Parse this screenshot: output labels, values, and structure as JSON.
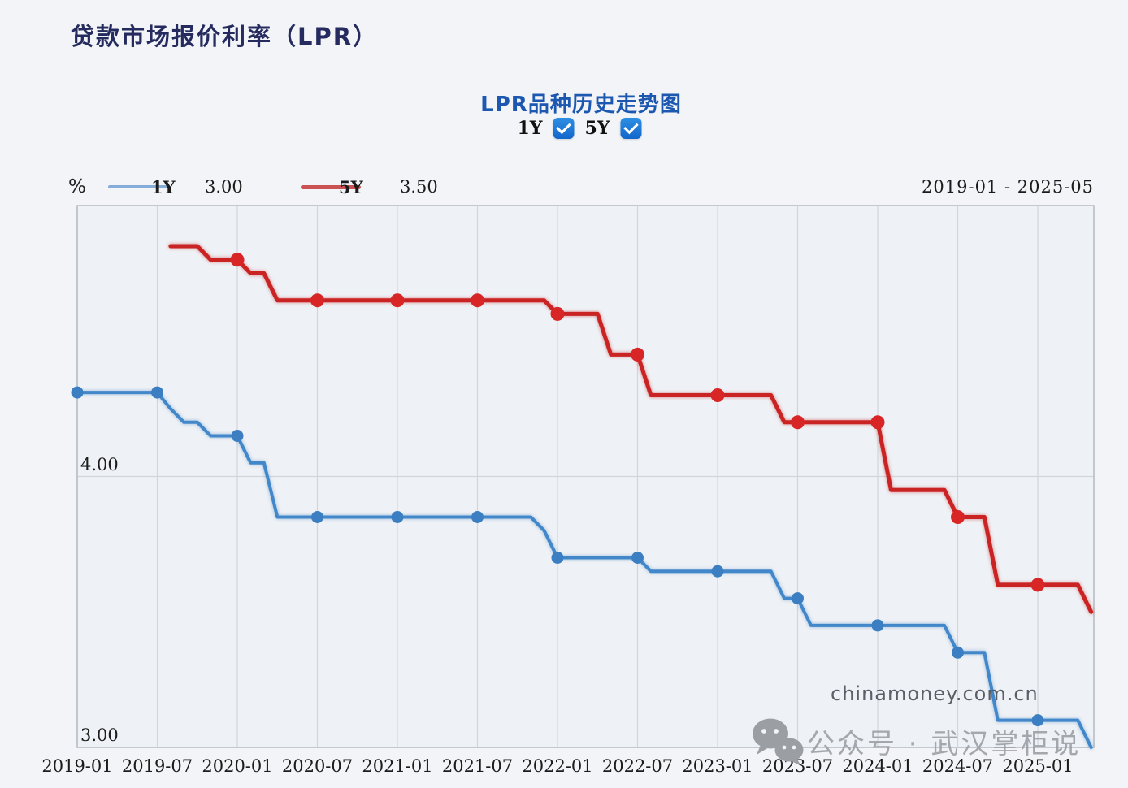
{
  "page": {
    "header_title": "贷款市场报价利率（LPR）",
    "chart_title": "LPR品种历史走势图",
    "date_range": "2019-01 - 2025-05",
    "unit_label": "%",
    "watermark_site": "chinamoney.com.cn",
    "watermark_wechat": "公众号 · 武汉掌柜说"
  },
  "controls": {
    "checkbox_1y_label": "1Y",
    "checkbox_1y_checked": true,
    "checkbox_5y_label": "5Y",
    "checkbox_5y_checked": true
  },
  "legend": {
    "series_1y_label": "1Y",
    "series_1y_value": "3.00",
    "series_5y_label": "5Y",
    "series_5y_value": "3.50"
  },
  "colors": {
    "page_bg": "#f2f4f7",
    "plot_bg": "#eef1f5",
    "plot_border": "#b4bac3",
    "gridline": "#d2d6dc",
    "header_title": "#252b5e",
    "chart_title": "#1c57b0",
    "checkbox_blue": "#1878d2",
    "line_1y": "#4287c9",
    "marker_1y": "#3b7fc2",
    "line_5y": "#c92323",
    "marker_5y": "#d82525",
    "legend_swatch_1y": "#86acd9",
    "legend_swatch_5y": "#cb5252",
    "axis_text": "#1c1c1c",
    "watermark_site": "#4e535a",
    "watermark_wechat": "#969aa0"
  },
  "chart_data": {
    "type": "line",
    "title": "LPR品种历史走势图",
    "xlabel": "",
    "ylabel": "%",
    "x_start": "2019-01",
    "x_end": "2025-05",
    "frequency": "monthly",
    "ylim": [
      3.0,
      5.0
    ],
    "grid": true,
    "marker_every_months": 6,
    "x_tick_labels": [
      "2019-01",
      "2019-07",
      "2020-01",
      "2020-07",
      "2021-01",
      "2021-07",
      "2022-01",
      "2022-07",
      "2023-01",
      "2023-07",
      "2024-01",
      "2024-07",
      "2025-01"
    ],
    "y_ticks": [
      {
        "value": 4.0,
        "label": "4.00",
        "gridline": true
      },
      {
        "value": 3.0,
        "label": "3.00",
        "gridline": false
      }
    ],
    "months": [
      "2019-01",
      "2019-02",
      "2019-03",
      "2019-04",
      "2019-05",
      "2019-06",
      "2019-07",
      "2019-08",
      "2019-09",
      "2019-10",
      "2019-11",
      "2019-12",
      "2020-01",
      "2020-02",
      "2020-03",
      "2020-04",
      "2020-05",
      "2020-06",
      "2020-07",
      "2020-08",
      "2020-09",
      "2020-10",
      "2020-11",
      "2020-12",
      "2021-01",
      "2021-02",
      "2021-03",
      "2021-04",
      "2021-05",
      "2021-06",
      "2021-07",
      "2021-08",
      "2021-09",
      "2021-10",
      "2021-11",
      "2021-12",
      "2022-01",
      "2022-02",
      "2022-03",
      "2022-04",
      "2022-05",
      "2022-06",
      "2022-07",
      "2022-08",
      "2022-09",
      "2022-10",
      "2022-11",
      "2022-12",
      "2023-01",
      "2023-02",
      "2023-03",
      "2023-04",
      "2023-05",
      "2023-06",
      "2023-07",
      "2023-08",
      "2023-09",
      "2023-10",
      "2023-11",
      "2023-12",
      "2024-01",
      "2024-02",
      "2024-03",
      "2024-04",
      "2024-05",
      "2024-06",
      "2024-07",
      "2024-08",
      "2024-09",
      "2024-10",
      "2024-11",
      "2024-12",
      "2025-01",
      "2025-02",
      "2025-03",
      "2025-04",
      "2025-05"
    ],
    "series": [
      {
        "name": "1Y",
        "color": "#4287c9",
        "marker_color": "#3b7fc2",
        "line_width": 4,
        "marker_radius": 7.5,
        "latest_value": 3.0,
        "values": [
          4.31,
          4.31,
          4.31,
          4.31,
          4.31,
          4.31,
          4.31,
          4.25,
          4.2,
          4.2,
          4.15,
          4.15,
          4.15,
          4.05,
          4.05,
          3.85,
          3.85,
          3.85,
          3.85,
          3.85,
          3.85,
          3.85,
          3.85,
          3.85,
          3.85,
          3.85,
          3.85,
          3.85,
          3.85,
          3.85,
          3.85,
          3.85,
          3.85,
          3.85,
          3.85,
          3.8,
          3.7,
          3.7,
          3.7,
          3.7,
          3.7,
          3.7,
          3.7,
          3.65,
          3.65,
          3.65,
          3.65,
          3.65,
          3.65,
          3.65,
          3.65,
          3.65,
          3.65,
          3.55,
          3.55,
          3.45,
          3.45,
          3.45,
          3.45,
          3.45,
          3.45,
          3.45,
          3.45,
          3.45,
          3.45,
          3.45,
          3.35,
          3.35,
          3.35,
          3.1,
          3.1,
          3.1,
          3.1,
          3.1,
          3.1,
          3.1,
          3.0
        ]
      },
      {
        "name": "5Y",
        "color": "#c92323",
        "marker_color": "#d82525",
        "line_width": 5,
        "marker_radius": 8.5,
        "latest_value": 3.5,
        "values": [
          null,
          null,
          null,
          null,
          null,
          null,
          null,
          4.85,
          4.85,
          4.85,
          4.8,
          4.8,
          4.8,
          4.75,
          4.75,
          4.65,
          4.65,
          4.65,
          4.65,
          4.65,
          4.65,
          4.65,
          4.65,
          4.65,
          4.65,
          4.65,
          4.65,
          4.65,
          4.65,
          4.65,
          4.65,
          4.65,
          4.65,
          4.65,
          4.65,
          4.65,
          4.6,
          4.6,
          4.6,
          4.6,
          4.45,
          4.45,
          4.45,
          4.3,
          4.3,
          4.3,
          4.3,
          4.3,
          4.3,
          4.3,
          4.3,
          4.3,
          4.3,
          4.2,
          4.2,
          4.2,
          4.2,
          4.2,
          4.2,
          4.2,
          4.2,
          3.95,
          3.95,
          3.95,
          3.95,
          3.95,
          3.85,
          3.85,
          3.85,
          3.6,
          3.6,
          3.6,
          3.6,
          3.6,
          3.6,
          3.6,
          3.5
        ]
      }
    ]
  }
}
